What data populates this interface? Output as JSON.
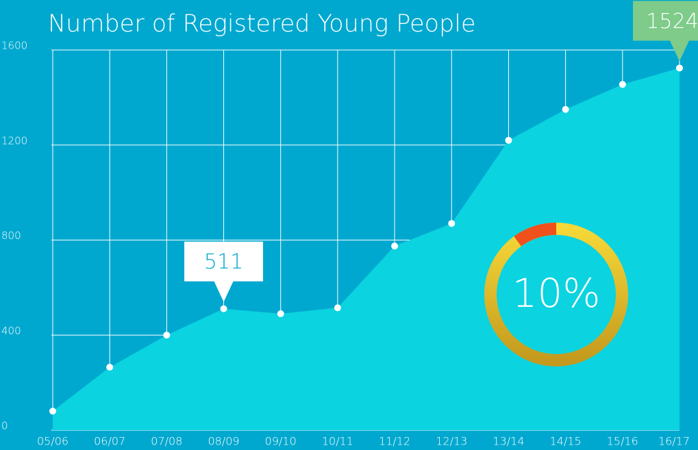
{
  "chart_data": {
    "type": "area",
    "title": "Number of Registered Young People",
    "categories": [
      "05/06",
      "06/07",
      "07/08",
      "08/09",
      "09/10",
      "10/11",
      "11/12",
      "12/13",
      "13/14",
      "14/15",
      "15/16",
      "16/17"
    ],
    "values": [
      80,
      265,
      400,
      511,
      490,
      515,
      775,
      870,
      1220,
      1350,
      1455,
      1524
    ],
    "color": "#0bd3e0",
    "ylim": [
      0,
      1600
    ],
    "yticks": [
      0,
      400,
      800,
      1200,
      1600
    ],
    "grid": true,
    "highlights": [
      {
        "index": 3,
        "color": "#ffffff"
      },
      {
        "index": 11,
        "color": "#7ecb8a"
      }
    ],
    "donut": {
      "value": 10,
      "label": "10%",
      "color": "#f0501c"
    }
  }
}
